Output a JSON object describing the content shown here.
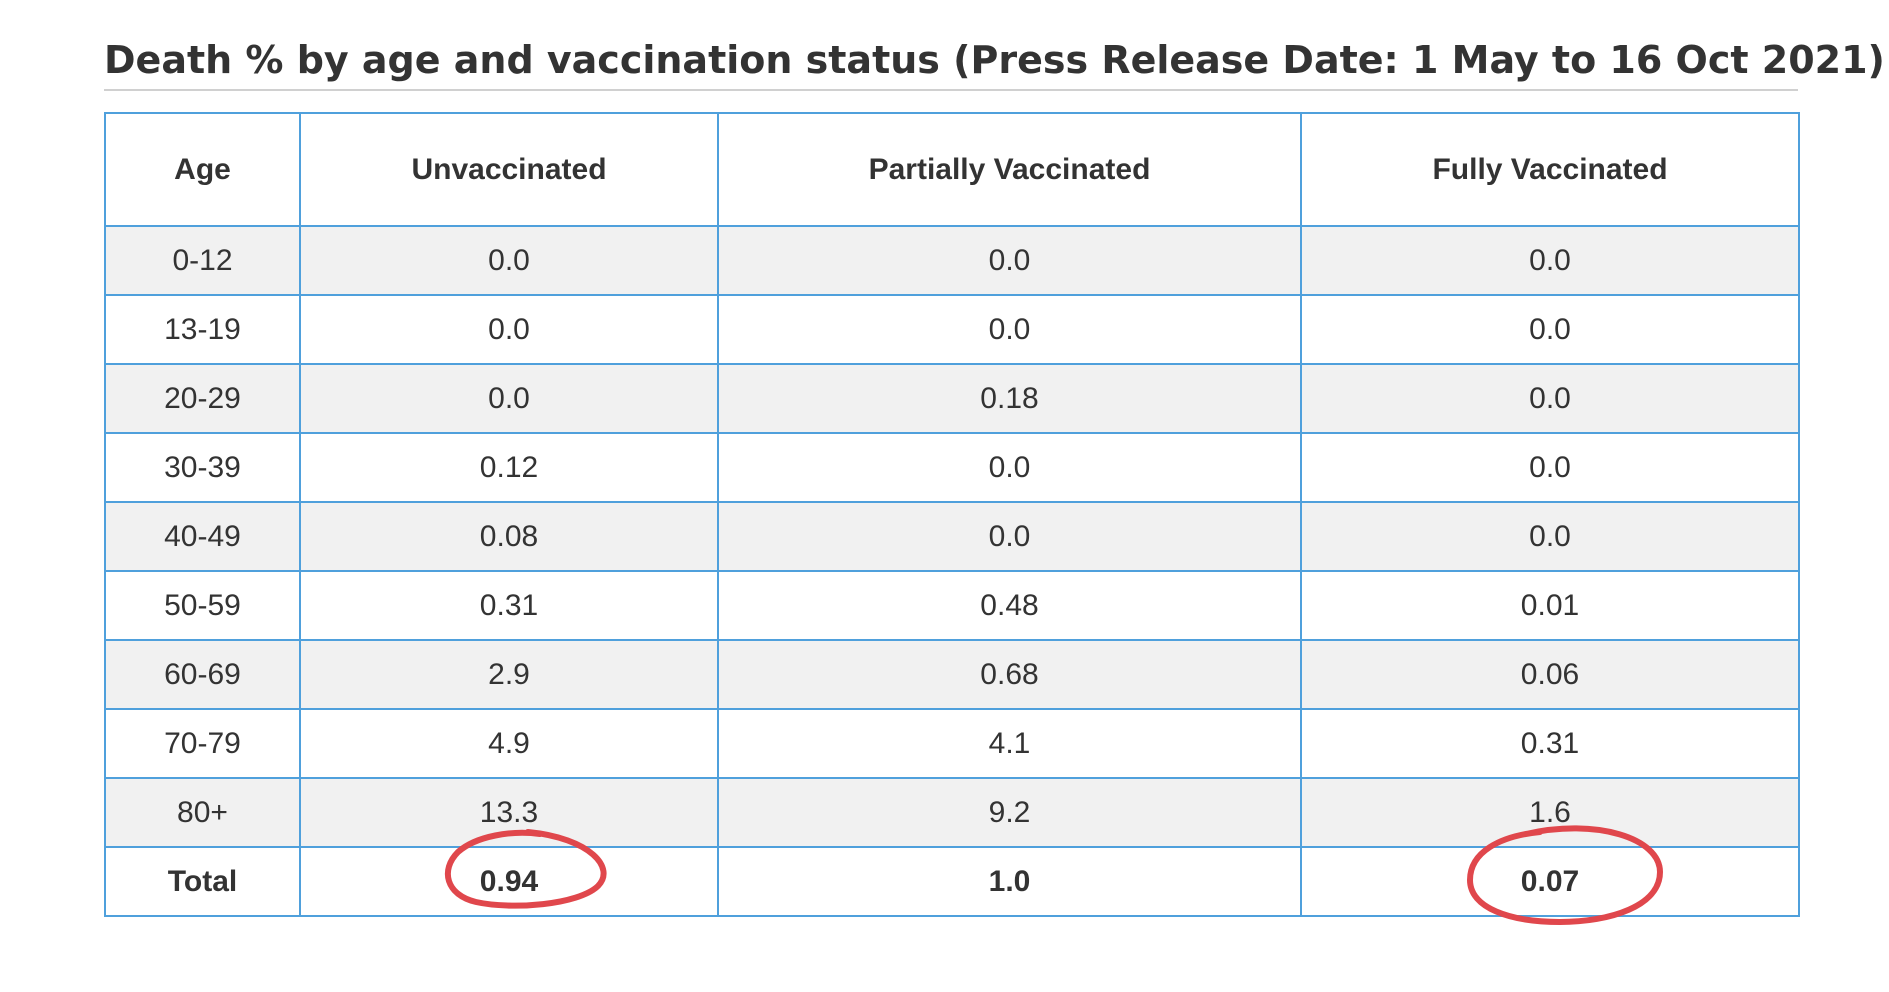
{
  "title": "Death % by age and vaccination status (Press Release Date: 1 May to 16 Oct 2021)",
  "table": {
    "headers": [
      "Age",
      "Unvaccinated",
      "Partially Vaccinated",
      "Fully Vaccinated"
    ],
    "rows": [
      [
        "0-12",
        "0.0",
        "0.0",
        "0.0"
      ],
      [
        "13-19",
        "0.0",
        "0.0",
        "0.0"
      ],
      [
        "20-29",
        "0.0",
        "0.18",
        "0.0"
      ],
      [
        "30-39",
        "0.12",
        "0.0",
        "0.0"
      ],
      [
        "40-49",
        "0.08",
        "0.0",
        "0.0"
      ],
      [
        "50-59",
        "0.31",
        "0.48",
        "0.01"
      ],
      [
        "60-69",
        "2.9",
        "0.68",
        "0.06"
      ],
      [
        "70-79",
        "4.9",
        "4.1",
        "0.31"
      ],
      [
        "80+",
        "13.3",
        "9.2",
        "1.6"
      ]
    ],
    "total": [
      "Total",
      "0.94",
      "1.0",
      "0.07"
    ]
  },
  "colors": {
    "border": "#4fa0dc",
    "stripe": "#f1f1f1",
    "text": "#333333",
    "annotation": "#e0474c"
  },
  "annotations": [
    "hand-drawn-circle-unvaccinated-total",
    "hand-drawn-circle-fully-vaccinated-total"
  ]
}
